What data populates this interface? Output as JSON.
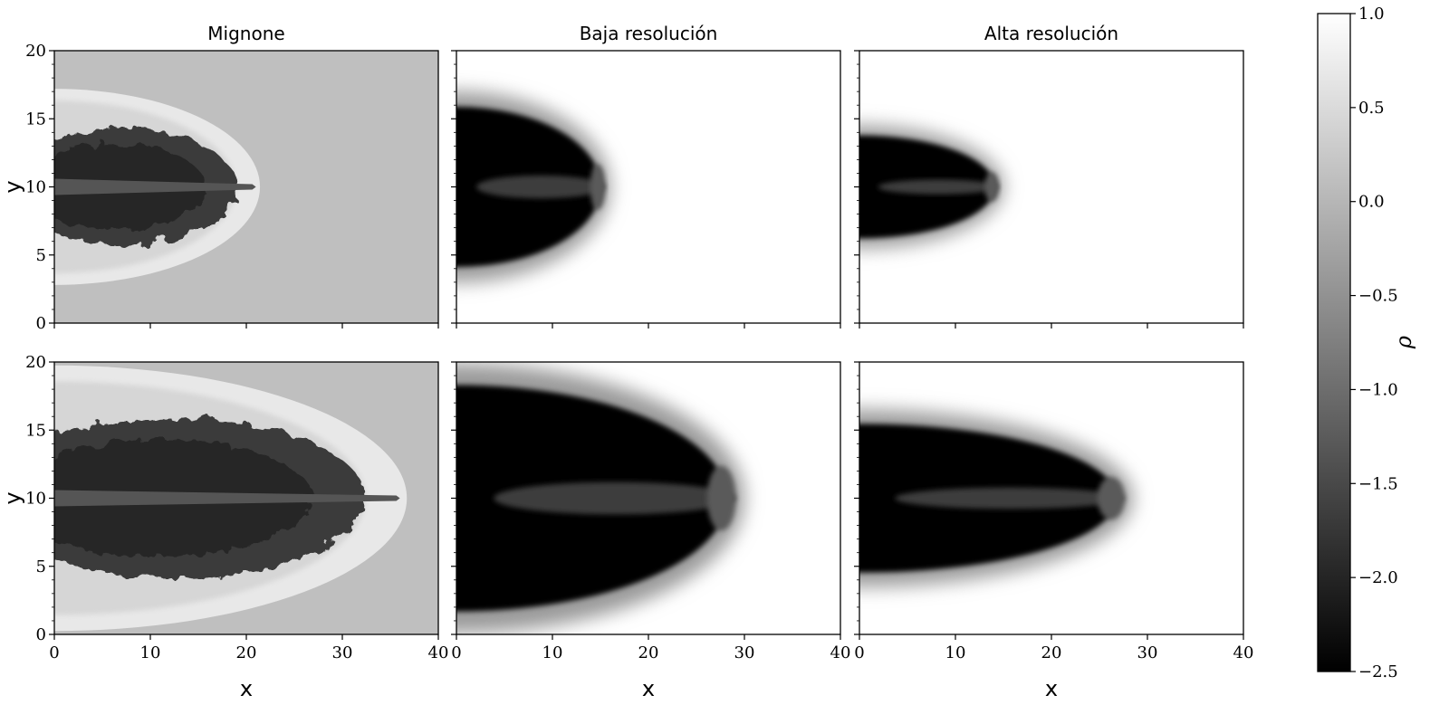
{
  "chart_data": {
    "type": "heatmap",
    "panels": [
      {
        "title": "Mignone",
        "row": 0,
        "col": 0,
        "style": "mignone",
        "front_x": 21,
        "lobe_top_y": 17.2,
        "lobe_bottom_y": 2.8
      },
      {
        "title": "Baja resolución",
        "row": 0,
        "col": 1,
        "style": "smooth",
        "front_x": 16,
        "lobe_top_y": 17,
        "lobe_bottom_y": 3
      },
      {
        "title": "Alta resolución",
        "row": 0,
        "col": 2,
        "style": "smooth",
        "front_x": 15,
        "lobe_top_y": 14.5,
        "lobe_bottom_y": 5.5
      },
      {
        "title": "",
        "row": 1,
        "col": 0,
        "style": "mignone",
        "front_x": 36,
        "lobe_top_y": 20,
        "lobe_bottom_y": 0.5
      },
      {
        "title": "",
        "row": 1,
        "col": 1,
        "style": "smooth",
        "front_x": 30,
        "lobe_top_y": 20,
        "lobe_bottom_y": 0.2
      },
      {
        "title": "",
        "row": 1,
        "col": 2,
        "style": "smooth",
        "front_x": 28.5,
        "lobe_top_y": 16.5,
        "lobe_bottom_y": 3.5
      }
    ],
    "xlabel": "x",
    "ylabel": "y",
    "xlim": [
      0,
      40
    ],
    "ylim": [
      0,
      20
    ],
    "xticks": [
      "0",
      "10",
      "20",
      "30",
      "40"
    ],
    "yticks": [
      "0",
      "5",
      "10",
      "15",
      "20"
    ],
    "colorbar": {
      "label": "ρ",
      "range": [
        -2.5,
        1.0
      ],
      "ticks": [
        "1.0",
        "0.5",
        "0.0",
        "−0.5",
        "−1.0",
        "−1.5",
        "−2.0",
        "−2.5"
      ],
      "colormap": "gray"
    },
    "grid": false
  }
}
